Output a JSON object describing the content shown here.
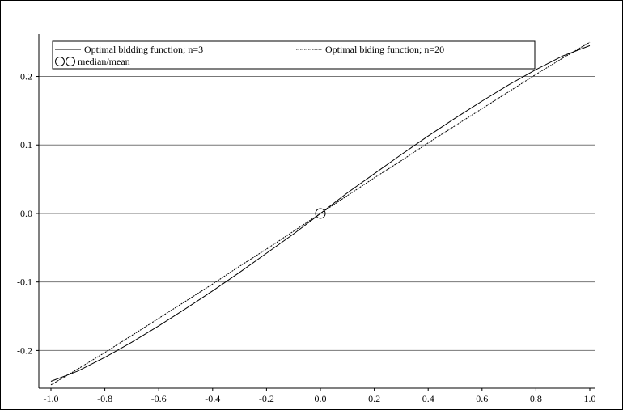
{
  "chart_data": {
    "type": "line",
    "title": "",
    "xlabel": "",
    "ylabel": "",
    "xlim": [
      -1.0,
      1.0
    ],
    "ylim": [
      -0.255,
      0.262
    ],
    "x_ticks": [
      "-1.0",
      "-0.8",
      "-0.6",
      "-0.4",
      "-0.2",
      "0.0",
      "0.2",
      "0.4",
      "0.6",
      "0.8",
      "1.0"
    ],
    "y_ticks": [
      "-0.2",
      "-0.1",
      "0.0",
      "0.1",
      "0.2"
    ],
    "grid": "horizontal",
    "legend_position": "top",
    "legend": [
      {
        "label": "Optimal bidding function; n=3",
        "style": "solid"
      },
      {
        "label": "Optimal biding function; n=20",
        "style": "dotted"
      },
      {
        "label": "median/mean",
        "style": "circle"
      }
    ],
    "series": [
      {
        "name": "Optimal bidding function; n=3",
        "style": "solid",
        "x": [
          -1.0,
          -0.9,
          -0.8,
          -0.7,
          -0.6,
          -0.5,
          -0.4,
          -0.3,
          -0.2,
          -0.1,
          0.0,
          0.1,
          0.2,
          0.3,
          0.4,
          0.5,
          0.6,
          0.7,
          0.8,
          0.9,
          1.0
        ],
        "y": [
          -0.245,
          -0.23,
          -0.21,
          -0.188,
          -0.164,
          -0.139,
          -0.113,
          -0.086,
          -0.058,
          -0.03,
          0.0,
          0.03,
          0.058,
          0.086,
          0.113,
          0.139,
          0.164,
          0.188,
          0.21,
          0.23,
          0.245
        ]
      },
      {
        "name": "Optimal biding function; n=20",
        "style": "dotted",
        "x": [
          -1.0,
          -0.9,
          -0.8,
          -0.7,
          -0.6,
          -0.5,
          -0.4,
          -0.3,
          -0.2,
          -0.1,
          0.0,
          0.1,
          0.2,
          0.3,
          0.4,
          0.5,
          0.6,
          0.7,
          0.8,
          0.9,
          1.0
        ],
        "y": [
          -0.25,
          -0.227,
          -0.203,
          -0.178,
          -0.153,
          -0.128,
          -0.103,
          -0.077,
          -0.052,
          -0.026,
          0.0,
          0.026,
          0.052,
          0.077,
          0.103,
          0.128,
          0.153,
          0.178,
          0.203,
          0.227,
          0.25
        ]
      }
    ],
    "markers": [
      {
        "name": "median/mean",
        "x": 0.0,
        "y": 0.0
      }
    ]
  }
}
